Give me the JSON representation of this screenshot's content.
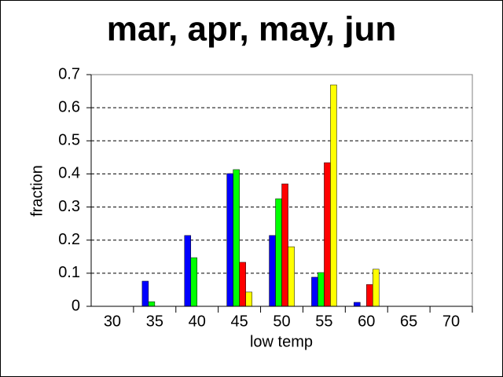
{
  "chart_data": {
    "type": "bar",
    "title": "mar, apr, may, jun",
    "xlabel": "low temp",
    "ylabel": "fraction",
    "categories": [
      "30",
      "35",
      "40",
      "45",
      "50",
      "55",
      "60",
      "65",
      "70"
    ],
    "series": [
      {
        "color": "#0000ff",
        "values": [
          0,
          0.076,
          0.214,
          0.401,
          0.214,
          0.088,
          0.012,
          0,
          0
        ]
      },
      {
        "color": "#00ff00",
        "values": [
          0,
          0.014,
          0.147,
          0.413,
          0.325,
          0.102,
          0,
          0,
          0
        ]
      },
      {
        "color": "#ff0000",
        "values": [
          0,
          0,
          0,
          0.133,
          0.37,
          0.434,
          0.066,
          0,
          0
        ]
      },
      {
        "color": "#ffff00",
        "values": [
          0,
          0,
          0,
          0.043,
          0.18,
          0.669,
          0.112,
          0,
          0
        ]
      }
    ],
    "ylim": [
      0,
      0.7
    ],
    "yticks": [
      0,
      0.1,
      0.2,
      0.3,
      0.4,
      0.5,
      0.6,
      0.7
    ],
    "grid": true
  }
}
